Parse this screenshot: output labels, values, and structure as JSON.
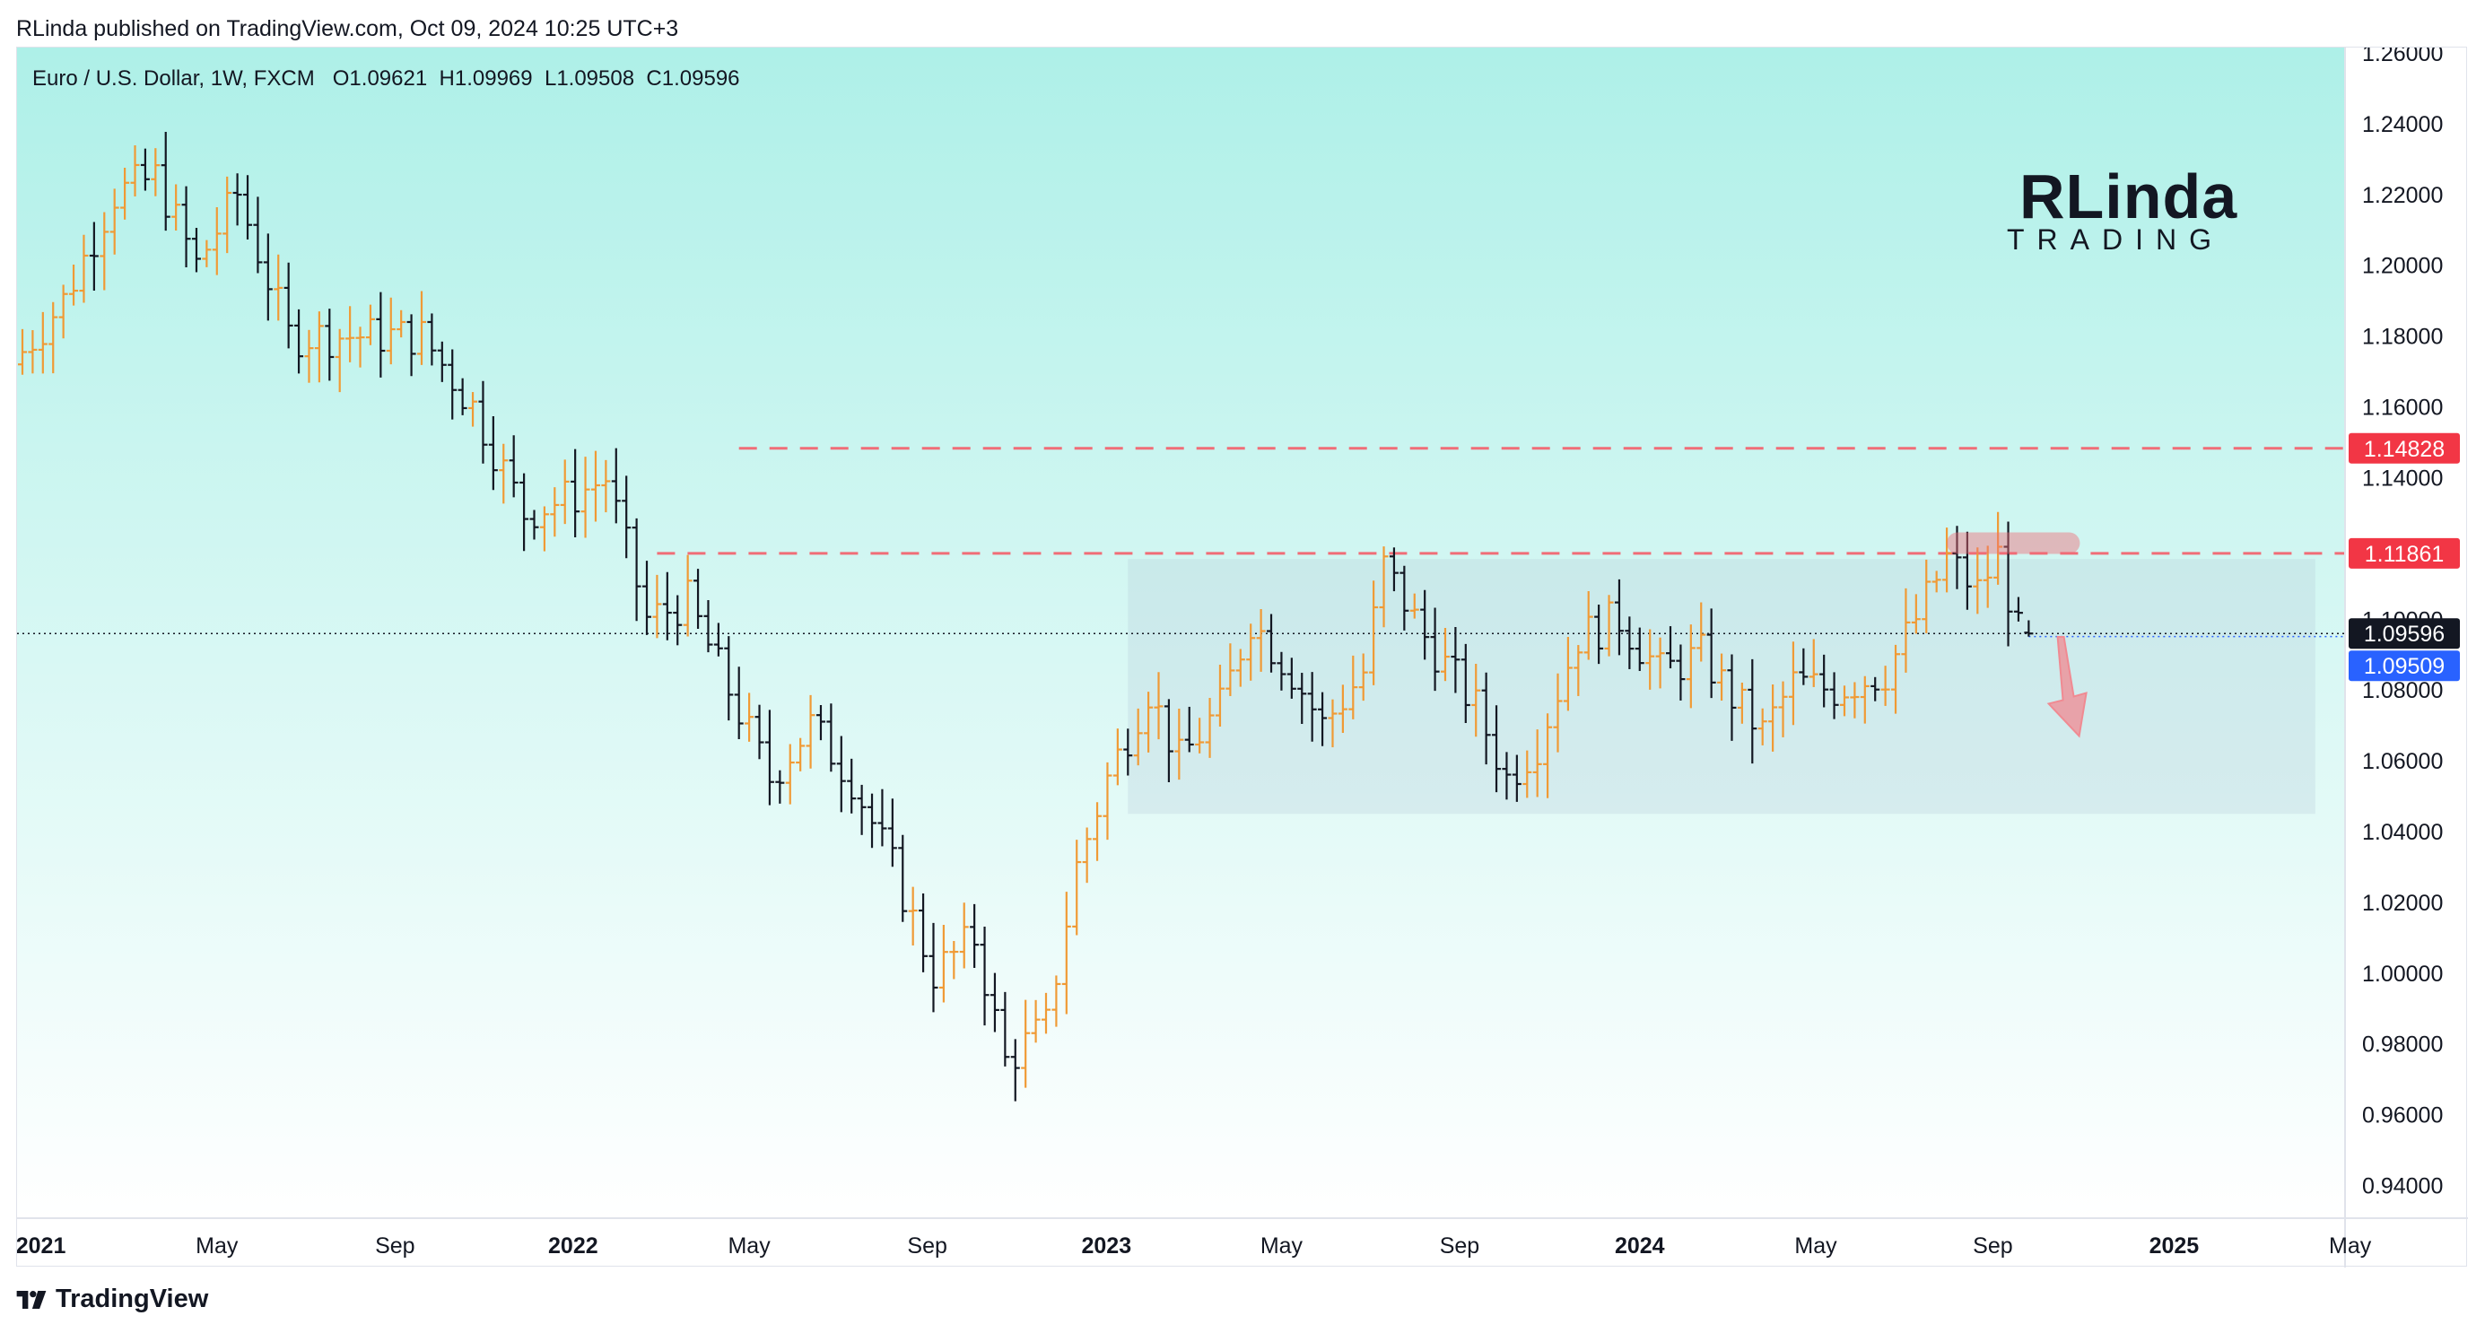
{
  "publisher_line": "RLinda published on TradingView.com, Oct 09, 2024 10:25 UTC+3",
  "legend": {
    "symbol": "Euro / U.S. Dollar, 1W, FXCM",
    "open": "O1.09621",
    "high": "H1.09969",
    "low": "L1.09508",
    "close": "C1.09596"
  },
  "brand": {
    "top": "RLinda",
    "bottom": "TRADING"
  },
  "footer": {
    "brand": "TradingView"
  },
  "colors": {
    "bg_top": "#aef0e8",
    "bg_bottom": "#ffffff",
    "bar_up": "#f09a35",
    "bar_down": "#131722",
    "resistance": "#f06d77",
    "range_box": "#b4c8d8",
    "arrow": "#f08a92",
    "tag_red": "#f23645",
    "tag_black": "#131722",
    "tag_blue": "#2962ff"
  },
  "chart_data": {
    "type": "ohlc",
    "timeframe": "1W",
    "yaxis": {
      "min": 0.93,
      "max": 1.26,
      "ticks": [
        "1.26000",
        "1.24000",
        "1.22000",
        "1.20000",
        "1.18000",
        "1.16000",
        "1.14000",
        "1.12000",
        "1.10000",
        "1.08000",
        "1.06000",
        "1.04000",
        "1.02000",
        "1.00000",
        "0.98000",
        "0.96000",
        "0.94000"
      ]
    },
    "xaxis": {
      "ticks": [
        {
          "label": "2021",
          "t": 1.8,
          "bold": true
        },
        {
          "label": "May",
          "t": 19.0
        },
        {
          "label": "Sep",
          "t": 36.4
        },
        {
          "label": "2022",
          "t": 53.8,
          "bold": true
        },
        {
          "label": "May",
          "t": 71.0
        },
        {
          "label": "Sep",
          "t": 88.4
        },
        {
          "label": "2023",
          "t": 105.9,
          "bold": true
        },
        {
          "label": "May",
          "t": 123.0
        },
        {
          "label": "Sep",
          "t": 140.4
        },
        {
          "label": "2024",
          "t": 158.0,
          "bold": true
        },
        {
          "label": "May",
          "t": 175.2
        },
        {
          "label": "Sep",
          "t": 192.5
        },
        {
          "label": "2025",
          "t": 210.2,
          "bold": true
        },
        {
          "label": "May",
          "t": 227.4
        }
      ]
    },
    "anchors": [
      [
        0,
        1.172
      ],
      [
        5,
        1.19
      ],
      [
        10,
        1.22
      ],
      [
        14,
        1.225
      ],
      [
        18,
        1.2
      ],
      [
        22,
        1.22
      ],
      [
        27,
        1.18
      ],
      [
        31,
        1.18
      ],
      [
        36,
        1.18
      ],
      [
        40,
        1.18
      ],
      [
        45,
        1.16
      ],
      [
        50,
        1.13
      ],
      [
        55,
        1.135
      ],
      [
        58,
        1.14
      ],
      [
        62,
        1.1
      ],
      [
        66,
        1.105
      ],
      [
        70,
        1.08
      ],
      [
        74,
        1.055
      ],
      [
        78,
        1.07
      ],
      [
        82,
        1.055
      ],
      [
        86,
        1.03
      ],
      [
        90,
        1.0
      ],
      [
        94,
        1.01
      ],
      [
        97,
        0.975
      ],
      [
        101,
        0.985
      ],
      [
        104,
        1.03
      ],
      [
        107,
        1.055
      ],
      [
        111,
        1.08
      ],
      [
        114,
        1.06
      ],
      [
        118,
        1.075
      ],
      [
        121,
        1.1
      ],
      [
        125,
        1.085
      ],
      [
        128,
        1.07
      ],
      [
        132,
        1.085
      ],
      [
        134,
        1.115
      ],
      [
        138,
        1.095
      ],
      [
        143,
        1.075
      ],
      [
        146,
        1.055
      ],
      [
        149,
        1.065
      ],
      [
        153,
        1.095
      ],
      [
        157,
        1.1
      ],
      [
        161,
        1.085
      ],
      [
        165,
        1.09
      ],
      [
        168,
        1.078
      ],
      [
        171,
        1.068
      ],
      [
        174,
        1.082
      ],
      [
        178,
        1.08
      ],
      [
        183,
        1.085
      ],
      [
        186,
        1.1
      ],
      [
        189,
        1.117
      ],
      [
        192,
        1.108
      ],
      [
        194,
        1.118
      ],
      [
        196,
        1.096
      ]
    ],
    "last_index": 196,
    "last_bar": {
      "open": 1.09621,
      "high": 1.09969,
      "low": 1.09508,
      "close": 1.09596
    },
    "levels": [
      {
        "price": 1.14828,
        "label": "1.14828",
        "style": "dashed"
      },
      {
        "price": 1.11861,
        "label": "1.11861",
        "style": "dashed"
      }
    ],
    "price_tags": [
      {
        "price": 1.09596,
        "label": "1.09596",
        "color": "#131722"
      },
      {
        "price": 1.09509,
        "label": "1.09509",
        "color": "#2962ff"
      }
    ],
    "range_box": {
      "t_start": 108,
      "t_end": 224,
      "price_top": 1.117,
      "price_bottom": 1.045
    },
    "top_marker": {
      "t_start": 188,
      "t_end": 201,
      "price": 1.1215
    },
    "arrow": {
      "t": 199,
      "from": 1.095,
      "to": 1.067
    }
  }
}
